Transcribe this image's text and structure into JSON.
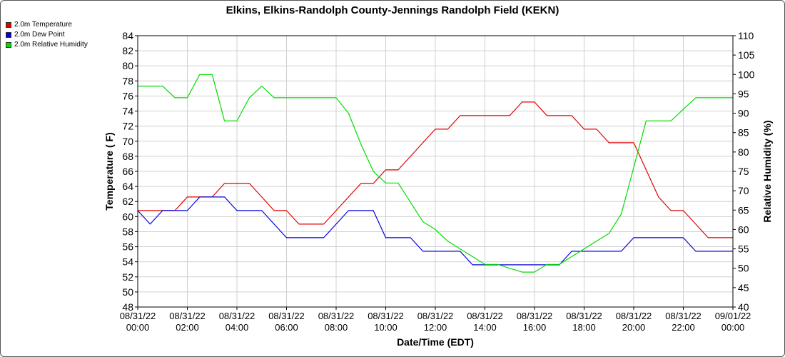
{
  "chart_data": {
    "type": "line",
    "title": "Elkins, Elkins-Randolph County-Jennings Randolph Field (KEKN)",
    "xlabel": "Date/Time (EDT)",
    "ylabel_left": "Temperature ( F)",
    "ylabel_right": "Relative Humidity (%)",
    "ylim_left": [
      48,
      84
    ],
    "ylim_right": [
      40,
      110
    ],
    "xlim_hours": [
      0,
      24
    ],
    "grid": true,
    "legend_position": "top-left",
    "x_ticks": [
      {
        "date": "08/31/22",
        "time": "00:00"
      },
      {
        "date": "08/31/22",
        "time": "02:00"
      },
      {
        "date": "08/31/22",
        "time": "04:00"
      },
      {
        "date": "08/31/22",
        "time": "06:00"
      },
      {
        "date": "08/31/22",
        "time": "08:00"
      },
      {
        "date": "08/31/22",
        "time": "10:00"
      },
      {
        "date": "08/31/22",
        "time": "12:00"
      },
      {
        "date": "08/31/22",
        "time": "14:00"
      },
      {
        "date": "08/31/22",
        "time": "16:00"
      },
      {
        "date": "08/31/22",
        "time": "18:00"
      },
      {
        "date": "08/31/22",
        "time": "20:00"
      },
      {
        "date": "08/31/22",
        "time": "22:00"
      },
      {
        "date": "09/01/22",
        "time": "00:00"
      }
    ],
    "y_ticks_left": [
      48,
      50,
      52,
      54,
      56,
      58,
      60,
      62,
      64,
      66,
      68,
      70,
      72,
      74,
      76,
      78,
      80,
      82,
      84
    ],
    "y_ticks_right": [
      40,
      45,
      50,
      55,
      60,
      65,
      70,
      75,
      80,
      85,
      90,
      95,
      100,
      105,
      110
    ],
    "series": [
      {
        "name": "2.0m Temperature",
        "color": "#e00000",
        "axis": "left",
        "x": [
          0,
          0.5,
          1,
          1.5,
          2,
          2.5,
          3,
          3.5,
          4,
          4.5,
          5,
          5.5,
          6,
          6.5,
          7,
          7.5,
          8,
          8.5,
          9,
          9.5,
          10,
          10.5,
          11,
          11.5,
          12,
          12.5,
          13,
          13.5,
          14,
          14.5,
          15,
          15.5,
          16,
          16.5,
          17,
          17.5,
          18,
          18.5,
          19,
          19.5,
          20,
          20.5,
          21,
          21.5,
          22,
          22.5,
          23,
          23.5,
          24
        ],
        "y": [
          60.8,
          60.8,
          60.8,
          60.8,
          62.6,
          62.6,
          62.6,
          64.4,
          64.4,
          64.4,
          62.6,
          60.8,
          60.8,
          59.0,
          59.0,
          59.0,
          60.8,
          62.6,
          64.4,
          64.4,
          66.2,
          66.2,
          68.0,
          69.8,
          71.6,
          71.6,
          73.4,
          73.4,
          73.4,
          73.4,
          73.4,
          75.2,
          75.2,
          73.4,
          73.4,
          73.4,
          71.6,
          71.6,
          69.8,
          69.8,
          69.8,
          66.2,
          62.6,
          60.8,
          60.8,
          59.0,
          57.2,
          57.2,
          57.2
        ]
      },
      {
        "name": "2.0m Dew Point",
        "color": "#0000dd",
        "axis": "left",
        "x": [
          0,
          0.5,
          1,
          1.5,
          2,
          2.5,
          3,
          3.5,
          4,
          4.5,
          5,
          5.5,
          6,
          6.5,
          7,
          7.5,
          8,
          8.5,
          9,
          9.5,
          10,
          10.5,
          11,
          11.5,
          12,
          12.5,
          13,
          13.5,
          14,
          14.5,
          15,
          15.5,
          16,
          16.5,
          17,
          17.5,
          18,
          18.5,
          19,
          19.5,
          20,
          20.5,
          21,
          21.5,
          22,
          22.5,
          23,
          23.5,
          24
        ],
        "y": [
          60.8,
          59.0,
          60.8,
          60.8,
          60.8,
          62.6,
          62.6,
          62.6,
          60.8,
          60.8,
          60.8,
          59.0,
          57.2,
          57.2,
          57.2,
          57.2,
          59.0,
          60.8,
          60.8,
          60.8,
          57.2,
          57.2,
          57.2,
          55.4,
          55.4,
          55.4,
          55.4,
          53.6,
          53.6,
          53.6,
          53.6,
          53.6,
          53.6,
          53.6,
          53.6,
          55.4,
          55.4,
          55.4,
          55.4,
          55.4,
          57.2,
          57.2,
          57.2,
          57.2,
          57.2,
          55.4,
          55.4,
          55.4,
          55.4
        ]
      },
      {
        "name": "2.0m Relative Humidity",
        "color": "#00dd00",
        "axis": "right",
        "x": [
          0,
          0.5,
          1,
          1.5,
          2,
          2.5,
          3,
          3.5,
          4,
          4.5,
          5,
          5.5,
          6,
          6.5,
          7,
          7.5,
          8,
          8.5,
          9,
          9.5,
          10,
          10.5,
          11,
          11.5,
          12,
          12.5,
          13,
          13.5,
          14,
          14.5,
          15,
          15.5,
          16,
          16.5,
          17,
          17.5,
          18,
          18.5,
          19,
          19.5,
          20,
          20.5,
          21,
          21.5,
          22,
          22.5,
          23,
          23.5,
          24
        ],
        "y": [
          97,
          97,
          97,
          94,
          94,
          100,
          100,
          88,
          88,
          94,
          97,
          94,
          94,
          94,
          94,
          94,
          94,
          90,
          82,
          75,
          72,
          72,
          67,
          62,
          60,
          57,
          55,
          53,
          51,
          51,
          50,
          49,
          49,
          51,
          51,
          53,
          55,
          57,
          59,
          64,
          76,
          88,
          88,
          88,
          91,
          94,
          94,
          94,
          94
        ]
      }
    ]
  }
}
